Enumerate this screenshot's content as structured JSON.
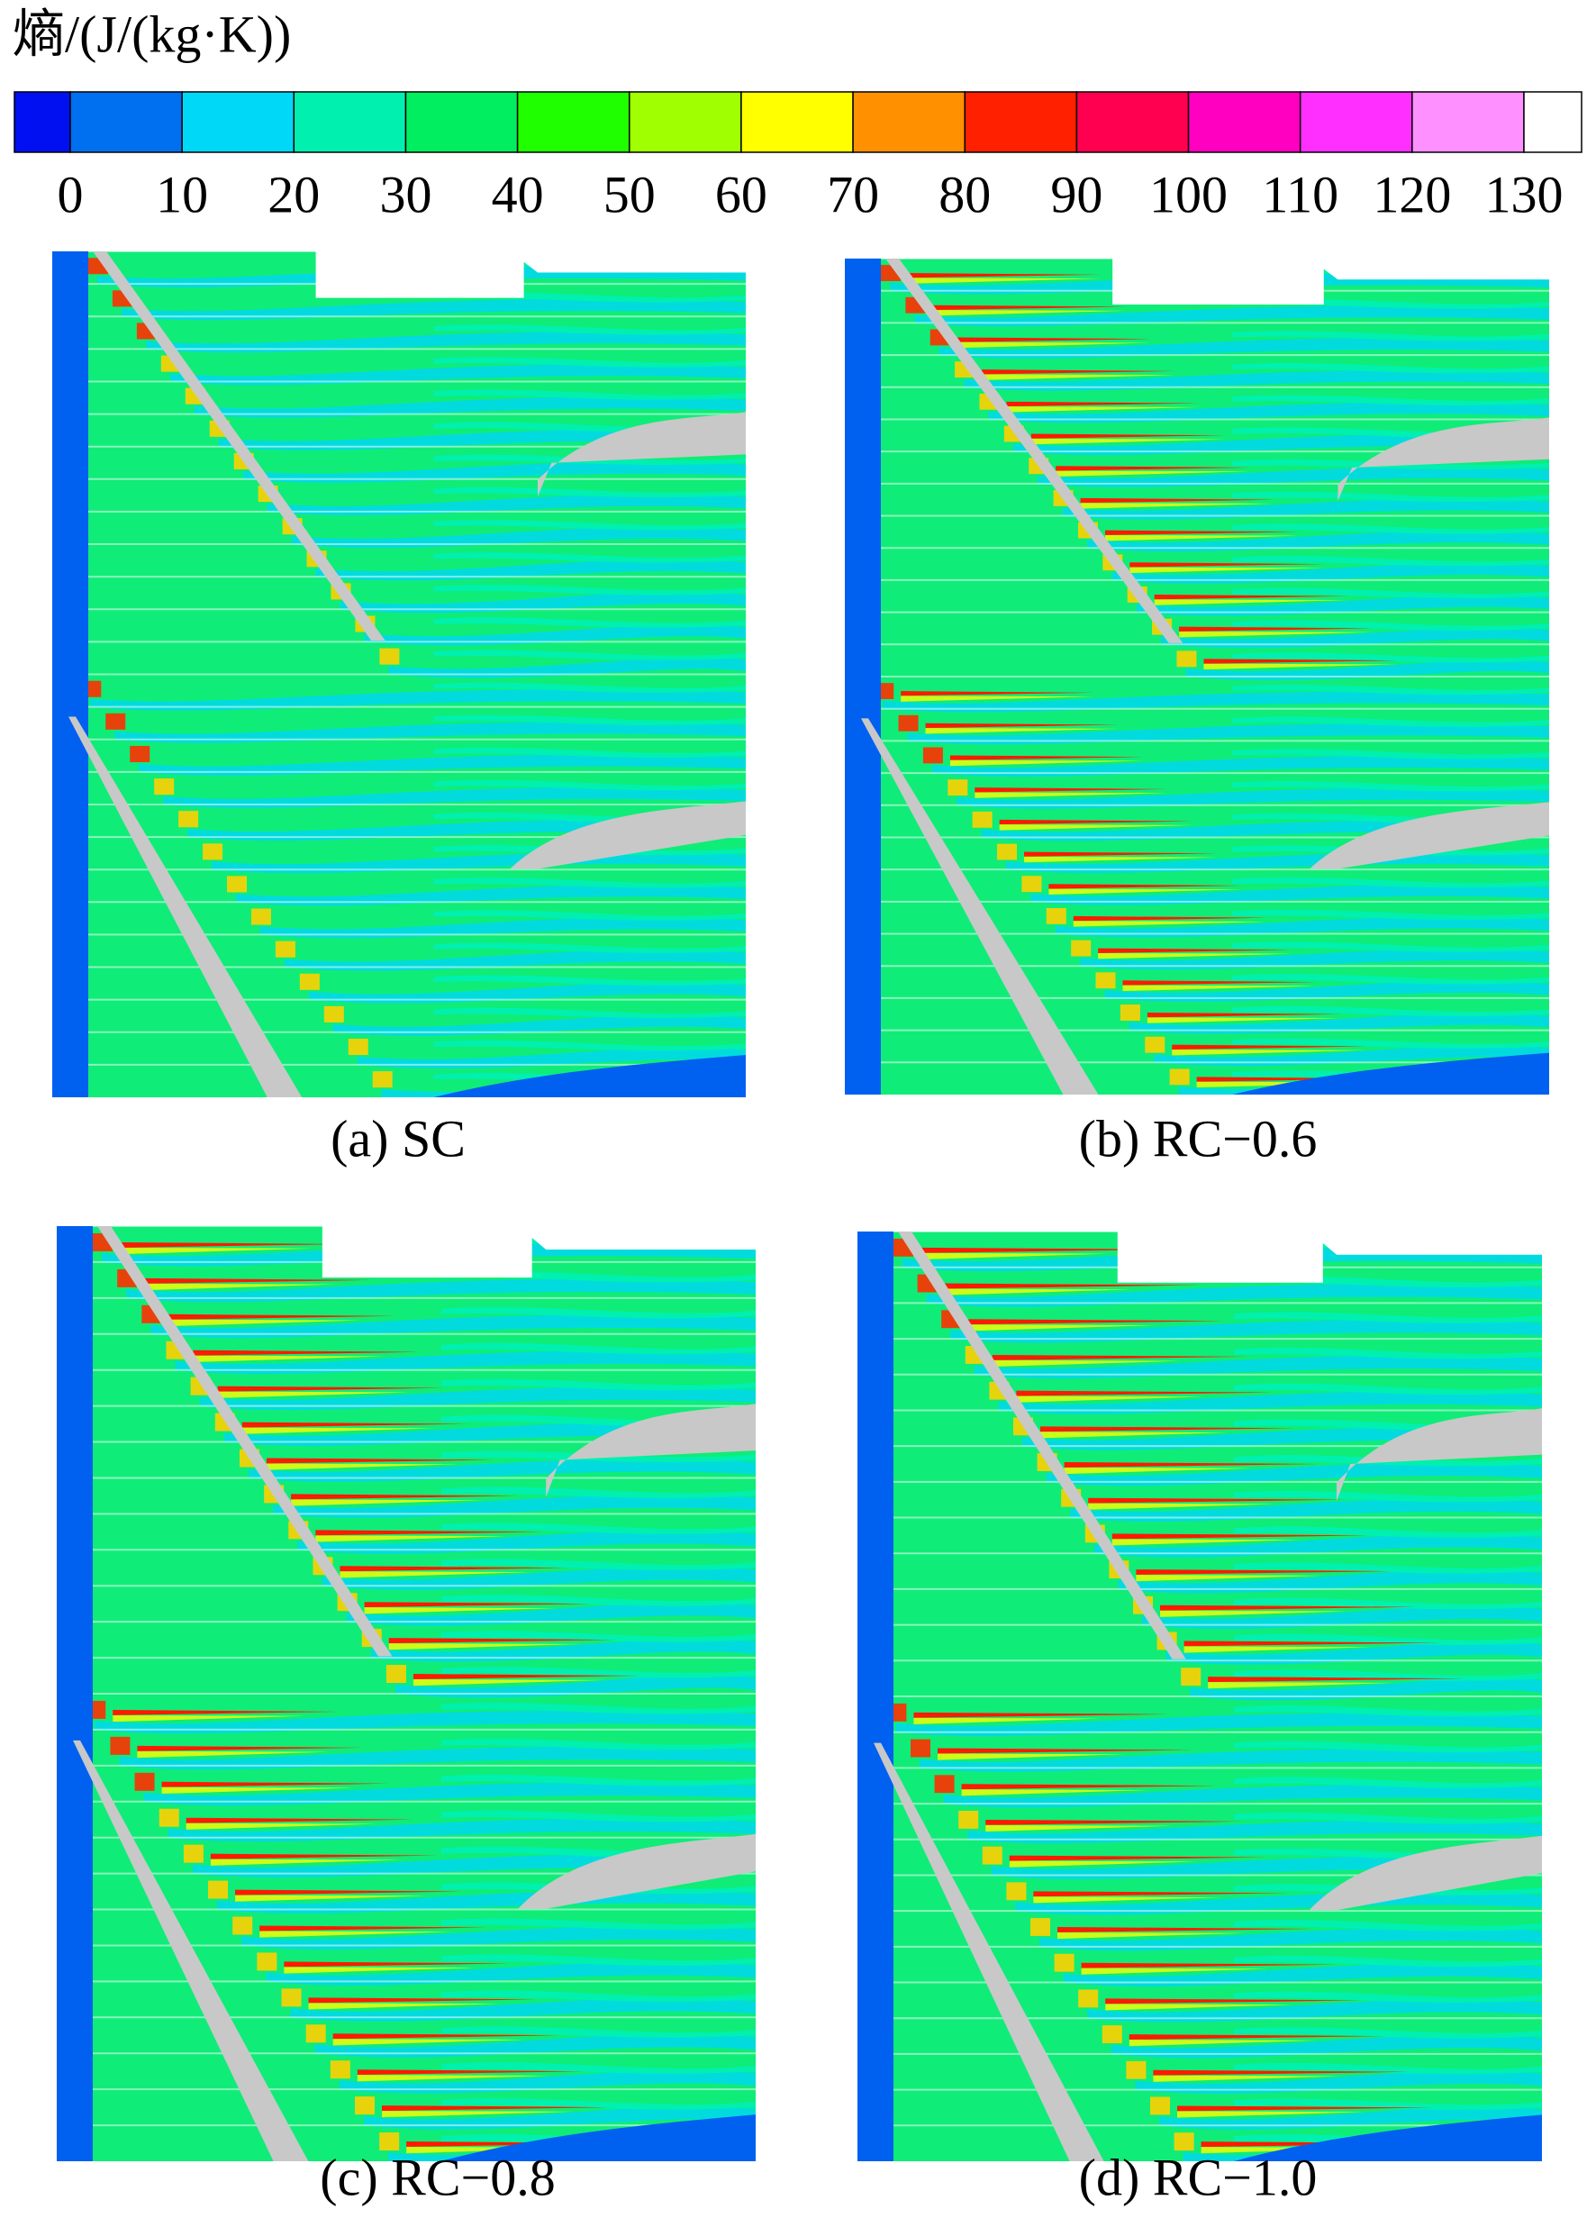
{
  "colorbar": {
    "title": "熵/(J/(kg·K))",
    "ticks": [
      0,
      10,
      20,
      30,
      40,
      50,
      60,
      70,
      80,
      90,
      100,
      110,
      120,
      130
    ],
    "colors": [
      "#0010f0",
      "#0070f0",
      "#00d8f8",
      "#00f0b0",
      "#00ee60",
      "#20ff00",
      "#a0ff00",
      "#ffff00",
      "#ff9000",
      "#ff2000",
      "#ff0050",
      "#ff00c0",
      "#ff30ff",
      "#ff90ff",
      "#ffffff"
    ]
  },
  "panels": [
    {
      "caption": "(a) SC"
    },
    {
      "caption": "(b) RC−0.6"
    },
    {
      "caption": "(c) RC−0.8"
    },
    {
      "caption": "(d) RC−1.0"
    }
  ]
}
